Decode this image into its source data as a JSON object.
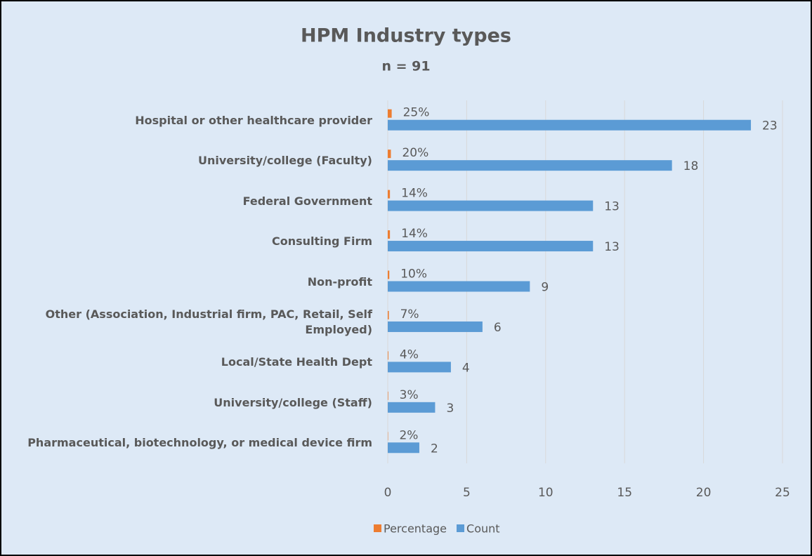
{
  "chart_data": {
    "type": "bar",
    "orientation": "horizontal",
    "title": "HPM Industry types",
    "subtitle": "n = 91",
    "categories": [
      "Hospital or other healthcare provider",
      "University/college (Faculty)",
      "Federal Government",
      "Consulting Firm",
      "Non-profit",
      "Other (Association, Industrial firm, PAC, Retail, Self Employed)",
      "Local/State Health Dept",
      "University/college (Staff)",
      "Pharmaceutical, biotechnology, or medical device firm"
    ],
    "series": [
      {
        "name": "Percentage",
        "color": "#ed7d31",
        "values": [
          0.25,
          0.2,
          0.14,
          0.14,
          0.1,
          0.07,
          0.04,
          0.03,
          0.02
        ],
        "value_labels": [
          "25%",
          "20%",
          "14%",
          "14%",
          "10%",
          "7%",
          "4%",
          "3%",
          "2%"
        ]
      },
      {
        "name": "Count",
        "color": "#5b9bd5",
        "values": [
          23,
          18,
          13,
          13,
          9,
          6,
          4,
          3,
          2
        ]
      }
    ],
    "xlim": [
      0,
      25
    ],
    "xticks": [
      0,
      5,
      10,
      15,
      20,
      25
    ],
    "grid": true,
    "legend": "bottom"
  }
}
